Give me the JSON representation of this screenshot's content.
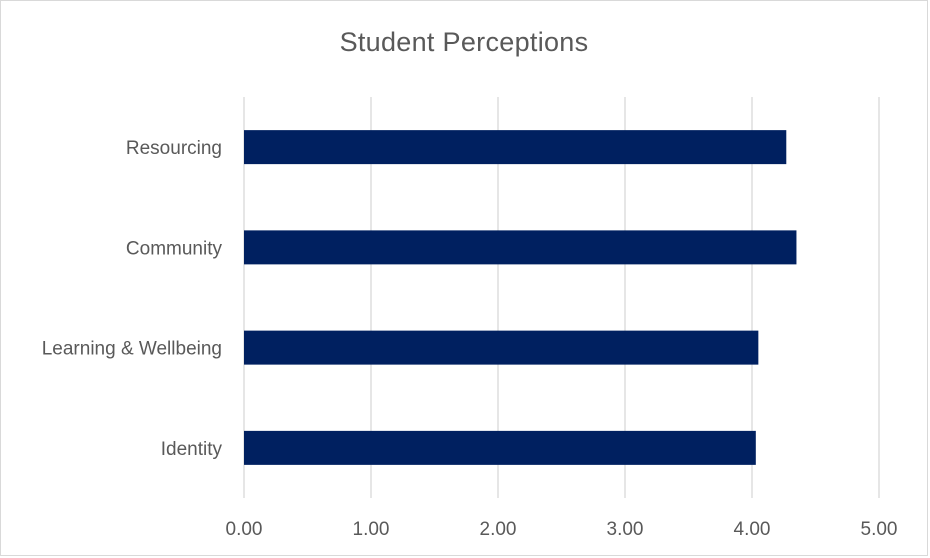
{
  "chart_data": {
    "type": "bar",
    "orientation": "horizontal",
    "title": "Student Perceptions",
    "categories": [
      "Resourcing",
      "Community",
      "Learning & Wellbeing",
      "Identity"
    ],
    "values": [
      4.27,
      4.35,
      4.05,
      4.03
    ],
    "xlim": [
      0,
      5
    ],
    "x_ticks": [
      "0.00",
      "1.00",
      "2.00",
      "3.00",
      "4.00",
      "5.00"
    ],
    "x_tick_values": [
      0,
      1,
      2,
      3,
      4,
      5
    ],
    "grid": "vertical",
    "legend": "none",
    "bar_color": "#002060",
    "grid_color": "#d9d9d9",
    "label_color": "#595959"
  }
}
